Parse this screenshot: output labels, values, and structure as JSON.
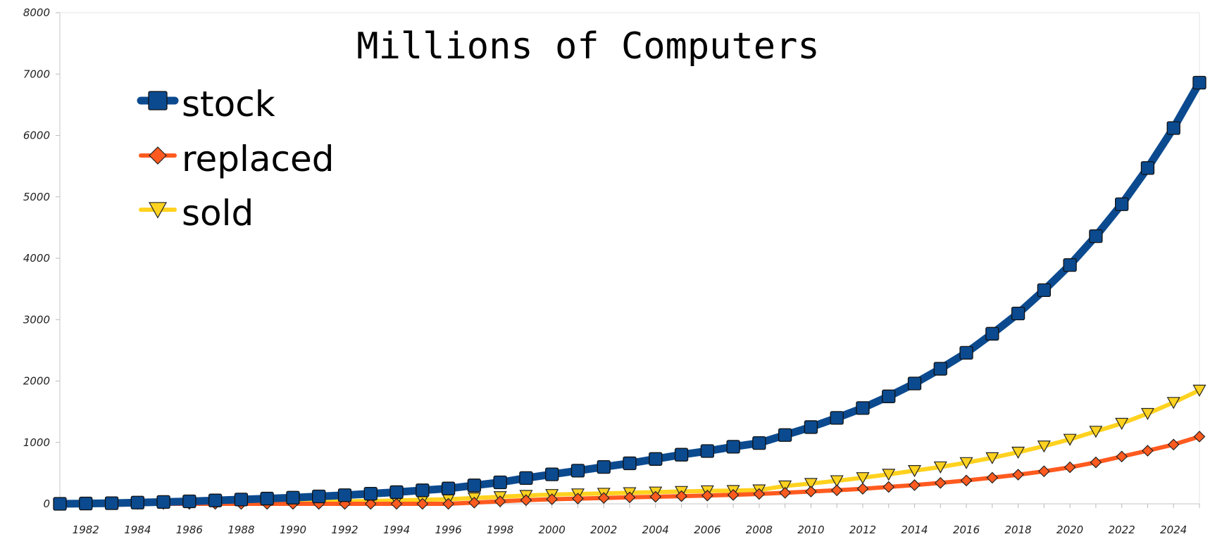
{
  "chart_data": {
    "type": "line",
    "title": "Millions of Computers",
    "xlabel": "",
    "ylabel": "",
    "grid": false,
    "legend_position": "top-left",
    "xlim": [
      1981,
      2025
    ],
    "ylim": [
      0,
      8000
    ],
    "y_ticks": [
      0,
      1000,
      2000,
      3000,
      4000,
      5000,
      6000,
      7000,
      8000
    ],
    "x_ticks": [
      1982,
      1984,
      1986,
      1988,
      1990,
      1992,
      1994,
      1996,
      1998,
      2000,
      2002,
      2004,
      2006,
      2008,
      2010,
      2012,
      2014,
      2016,
      2018,
      2020,
      2022,
      2024
    ],
    "x": [
      1981,
      1982,
      1983,
      1984,
      1985,
      1986,
      1987,
      1988,
      1989,
      1990,
      1991,
      1992,
      1993,
      1994,
      1995,
      1996,
      1997,
      1998,
      1999,
      2000,
      2001,
      2002,
      2003,
      2004,
      2005,
      2006,
      2007,
      2008,
      2009,
      2010,
      2011,
      2012,
      2013,
      2014,
      2015,
      2016,
      2017,
      2018,
      2019,
      2020,
      2021,
      2022,
      2023,
      2024,
      2025
    ],
    "series": [
      {
        "name": "stock",
        "color": "#0b4a8f",
        "marker": "square",
        "values": [
          0,
          5,
          10,
          20,
          30,
          40,
          55,
          70,
          85,
          100,
          120,
          140,
          165,
          190,
          220,
          250,
          300,
          350,
          420,
          480,
          540,
          600,
          660,
          730,
          800,
          860,
          930,
          990,
          1120,
          1250,
          1400,
          1560,
          1750,
          1960,
          2200,
          2460,
          2770,
          3100,
          3480,
          3890,
          4360,
          4880,
          5470,
          6120,
          6860
        ]
      },
      {
        "name": "replaced",
        "color": "#ff5a1f",
        "marker": "diamond",
        "values": [
          0,
          0,
          0,
          0,
          0,
          0,
          0,
          0,
          0,
          0,
          0,
          0,
          0,
          0,
          0,
          0,
          20,
          40,
          60,
          75,
          85,
          95,
          105,
          115,
          125,
          135,
          145,
          160,
          180,
          200,
          220,
          245,
          275,
          305,
          340,
          380,
          425,
          475,
          530,
          595,
          675,
          770,
          865,
          965,
          1095
        ]
      },
      {
        "name": "sold",
        "color": "#ffd21f",
        "marker": "triangle-down",
        "values": [
          0,
          5,
          8,
          10,
          12,
          15,
          18,
          22,
          26,
          30,
          35,
          40,
          45,
          55,
          65,
          75,
          95,
          115,
          135,
          150,
          160,
          170,
          180,
          190,
          200,
          210,
          215,
          225,
          290,
          330,
          375,
          425,
          480,
          540,
          600,
          670,
          750,
          840,
          940,
          1050,
          1180,
          1310,
          1470,
          1650,
          1850
        ]
      }
    ]
  }
}
